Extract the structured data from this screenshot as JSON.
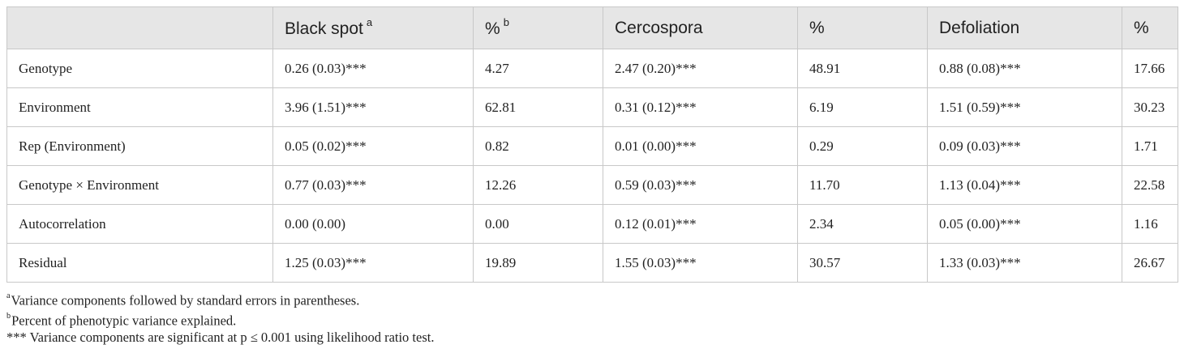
{
  "table": {
    "header": [
      {
        "text": "Black spot",
        "note": "a"
      },
      {
        "text": "%",
        "note": "b"
      },
      {
        "text": "Cercospora"
      },
      {
        "text": "%"
      },
      {
        "text": "Defoliation"
      },
      {
        "text": "%"
      }
    ],
    "rows": [
      [
        "Genotype",
        "0.26 (0.03)***",
        "4.27",
        "2.47 (0.20)***",
        "48.91",
        "0.88 (0.08)***",
        "17.66"
      ],
      [
        "Environment",
        "3.96 (1.51)***",
        "62.81",
        "0.31 (0.12)***",
        "6.19",
        "1.51 (0.59)***",
        "30.23"
      ],
      [
        "Rep (Environment)",
        "0.05 (0.02)***",
        "0.82",
        "0.01 (0.00)***",
        "0.29",
        "0.09 (0.03)***",
        "1.71"
      ],
      [
        "Genotype × Environment",
        "0.77 (0.03)***",
        "12.26",
        "0.59 (0.03)***",
        "11.70",
        "1.13 (0.04)***",
        "22.58"
      ],
      [
        "Autocorrelation",
        "0.00 (0.00)",
        "0.00",
        "0.12 (0.01)***",
        "2.34",
        "0.05 (0.00)***",
        "1.16"
      ],
      [
        "Residual",
        "1.25 (0.03)***",
        "19.89",
        "1.55 (0.03)***",
        "30.57",
        "1.33 (0.03)***",
        "26.67"
      ]
    ]
  },
  "footnotes": [
    {
      "mark": "a",
      "text": "Variance components followed by standard errors in parentheses."
    },
    {
      "mark": "b",
      "text": "Percent of phenotypic variance explained."
    },
    {
      "text": "*** Variance components are significant at p ≤ 0.001 using likelihood ratio test."
    }
  ]
}
